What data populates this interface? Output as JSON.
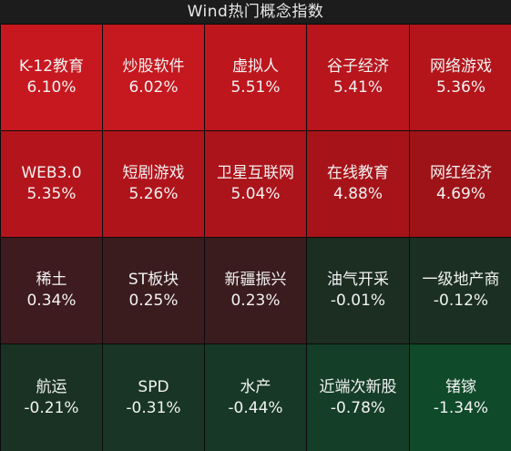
{
  "header": {
    "title": "Wind热门概念指数"
  },
  "tiles": [
    {
      "name": "K-12教育",
      "change": "6.10%",
      "color": "#c8181f"
    },
    {
      "name": "炒股软件",
      "change": "6.02%",
      "color": "#c6181f"
    },
    {
      "name": "虚拟人",
      "change": "5.51%",
      "color": "#bd161d"
    },
    {
      "name": "谷子经济",
      "change": "5.41%",
      "color": "#b8151c"
    },
    {
      "name": "网络游戏",
      "change": "5.36%",
      "color": "#b3151b"
    },
    {
      "name": "WEB3.0",
      "change": "5.35%",
      "color": "#b4151c"
    },
    {
      "name": "短剧游戏",
      "change": "5.26%",
      "color": "#b0141b"
    },
    {
      "name": "卫星互联网",
      "change": "5.04%",
      "color": "#ab141a"
    },
    {
      "name": "在线教育",
      "change": "4.88%",
      "color": "#a61419"
    },
    {
      "name": "网红经济",
      "change": "4.69%",
      "color": "#9e1318"
    },
    {
      "name": "稀土",
      "change": "0.34%",
      "color": "#3e1b1f"
    },
    {
      "name": "ST板块",
      "change": "0.25%",
      "color": "#3a1c1f"
    },
    {
      "name": "新疆振兴",
      "change": "0.23%",
      "color": "#3a1c1f"
    },
    {
      "name": "油气开采",
      "change": "-0.01%",
      "color": "#1c2d22"
    },
    {
      "name": "一级地产商",
      "change": "-0.12%",
      "color": "#1b3023"
    },
    {
      "name": "航运",
      "change": "-0.21%",
      "color": "#1a3224"
    },
    {
      "name": "SPD",
      "change": "-0.31%",
      "color": "#183525"
    },
    {
      "name": "水产",
      "change": "-0.44%",
      "color": "#173827"
    },
    {
      "name": "近端次新股",
      "change": "-0.78%",
      "color": "#153e28"
    },
    {
      "name": "锗镓",
      "change": "-1.34%",
      "color": "#0f4a2a"
    }
  ]
}
